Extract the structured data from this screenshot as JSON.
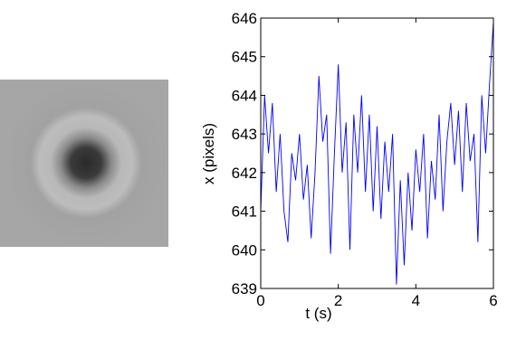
{
  "chart_data": {
    "type": "line",
    "xlabel": "t (s)",
    "ylabel": "x (pixels)",
    "x": [
      0,
      0.1,
      0.2,
      0.3,
      0.4,
      0.5,
      0.6,
      0.7,
      0.8,
      0.9,
      1.0,
      1.1,
      1.2,
      1.3,
      1.4,
      1.5,
      1.6,
      1.7,
      1.8,
      1.9,
      2.0,
      2.1,
      2.2,
      2.3,
      2.4,
      2.5,
      2.6,
      2.7,
      2.8,
      2.9,
      3.0,
      3.1,
      3.2,
      3.3,
      3.4,
      3.5,
      3.6,
      3.7,
      3.8,
      3.9,
      4.0,
      4.1,
      4.2,
      4.3,
      4.4,
      4.5,
      4.6,
      4.7,
      4.8,
      4.9,
      5.0,
      5.1,
      5.2,
      5.3,
      5.4,
      5.5,
      5.6,
      5.7,
      5.8,
      5.9,
      6.0
    ],
    "series": [
      {
        "color": "#0000ff",
        "values": [
          641,
          644,
          642.5,
          643.8,
          641.5,
          643,
          641,
          640.2,
          642.5,
          641.8,
          643,
          641.3,
          642.2,
          640.3,
          642,
          644.5,
          642.8,
          643.5,
          639.9,
          642.5,
          644.8,
          642,
          643.3,
          640,
          643.5,
          642,
          644,
          641.5,
          643.5,
          641,
          643.2,
          640.8,
          642.8,
          641.5,
          643,
          639.1,
          641.8,
          639.6,
          642,
          640.5,
          642.6,
          641.5,
          643,
          640.3,
          642.3,
          641.3,
          643.5,
          641,
          642.8,
          643.8,
          642.2,
          643.6,
          641.5,
          643.8,
          642.3,
          643,
          640.2,
          644,
          642.5,
          644.3,
          645.9
        ]
      }
    ],
    "xlim": [
      0,
      6
    ],
    "xticks": [
      0,
      2,
      4,
      6
    ],
    "ylim": [
      639,
      646
    ],
    "yticks": [
      639,
      640,
      641,
      642,
      643,
      644,
      645,
      646
    ]
  }
}
